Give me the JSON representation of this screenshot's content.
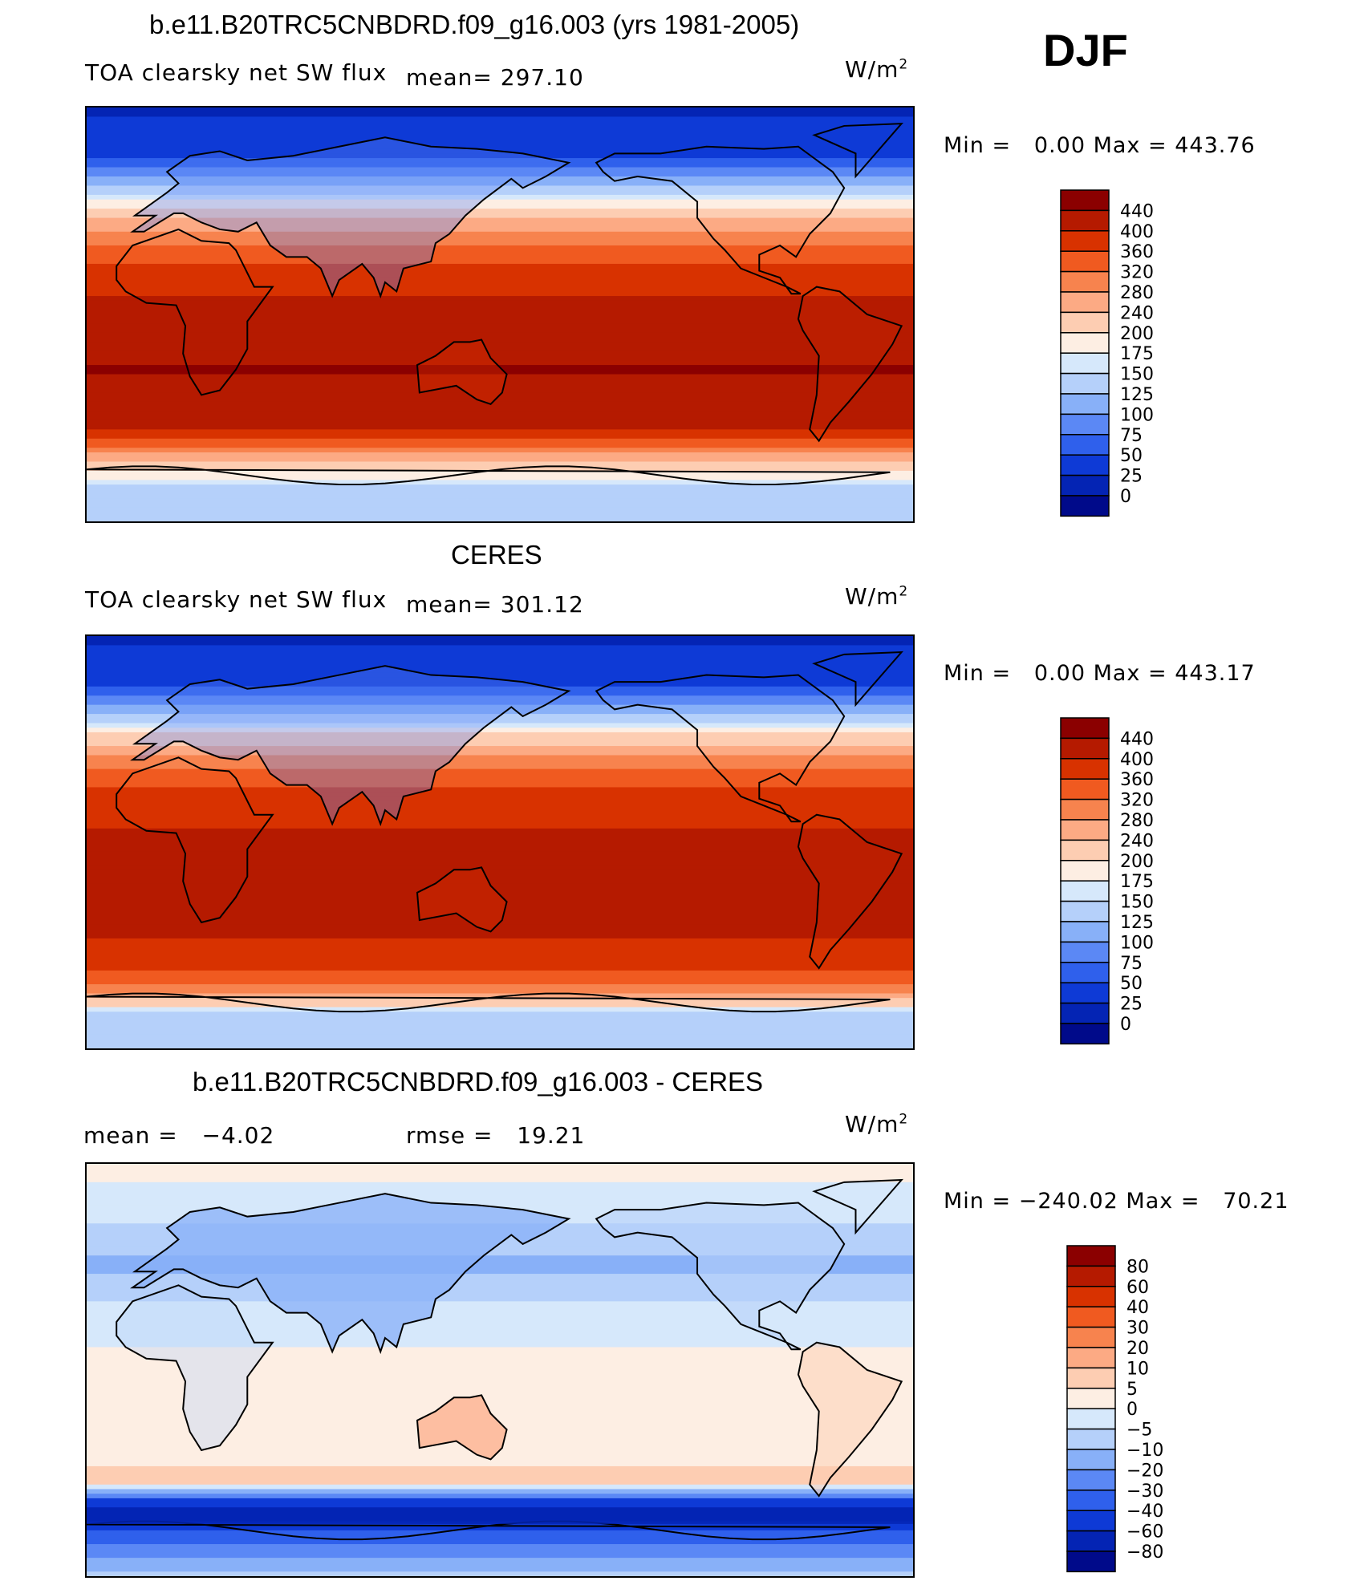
{
  "season": "DJF",
  "panels": [
    {
      "id": "model",
      "title": "b.e11.B20TRC5CNBDRD.f09_g16.003 (yrs 1981-2005)",
      "variable": "TOA clearsky net SW flux",
      "mean_label": "mean=",
      "mean_value": "297.10",
      "units_base": "W/m",
      "units_exp": "2",
      "min_label": "Min =",
      "min_value": "0.00",
      "max_label": "Max =",
      "max_value": "443.76"
    },
    {
      "id": "obs",
      "title": "CERES",
      "variable": "TOA clearsky net SW flux",
      "mean_label": "mean=",
      "mean_value": "301.12",
      "units_base": "W/m",
      "units_exp": "2",
      "min_label": "Min =",
      "min_value": "0.00",
      "max_label": "Max =",
      "max_value": "443.17"
    },
    {
      "id": "diff",
      "title": "b.e11.B20TRC5CNBDRD.f09_g16.003 - CERES",
      "mean_label": "mean =",
      "mean_value": "−4.02",
      "rmse_label": "rmse =",
      "rmse_value": "19.21",
      "units_base": "W/m",
      "units_exp": "2",
      "min_label": "Min =",
      "min_value": "−240.02",
      "max_label": "Max =",
      "max_value": "70.21"
    }
  ],
  "chart_data": [
    {
      "type": "heatmap",
      "title": "b.e11.B20TRC5CNBDRD.f09_g16.003 (yrs 1981-2005)",
      "variable": "TOA clearsky net SW flux",
      "units": "W/m2",
      "mean": 297.1,
      "min": 0.0,
      "max": 443.76,
      "colorbar_levels": [
        "440",
        "400",
        "360",
        "320",
        "280",
        "240",
        "200",
        "175",
        "150",
        "125",
        "100",
        "75",
        "50",
        "25",
        "0"
      ],
      "colors": [
        "#8b0000",
        "#b51a00",
        "#d83200",
        "#f05a20",
        "#f7834e",
        "#fcaa84",
        "#fdcdb2",
        "#fdeee3",
        "#d6e8fb",
        "#b5d0fa",
        "#88b0f8",
        "#5b88f5",
        "#2f60ec",
        "#0e3ad6",
        "#0424b4",
        "#000a8a"
      ],
      "zonal_profile": [
        {
          "lat": 90,
          "value": 20
        },
        {
          "lat": 70,
          "value": 40
        },
        {
          "lat": 55,
          "value": 130
        },
        {
          "lat": 45,
          "value": 210
        },
        {
          "lat": 35,
          "value": 290
        },
        {
          "lat": 20,
          "value": 370
        },
        {
          "lat": 0,
          "value": 420
        },
        {
          "lat": -25,
          "value": 443
        },
        {
          "lat": -50,
          "value": 400
        },
        {
          "lat": -65,
          "value": 230
        },
        {
          "lat": -75,
          "value": 140
        },
        {
          "lat": -90,
          "value": 130
        }
      ]
    },
    {
      "type": "heatmap",
      "title": "CERES",
      "variable": "TOA clearsky net SW flux",
      "units": "W/m2",
      "mean": 301.12,
      "min": 0.0,
      "max": 443.17,
      "colorbar_levels": [
        "440",
        "400",
        "360",
        "320",
        "280",
        "240",
        "200",
        "175",
        "150",
        "125",
        "100",
        "75",
        "50",
        "25",
        "0"
      ],
      "colors": [
        "#8b0000",
        "#b51a00",
        "#d83200",
        "#f05a20",
        "#f7834e",
        "#fcaa84",
        "#fdcdb2",
        "#fdeee3",
        "#d6e8fb",
        "#b5d0fa",
        "#88b0f8",
        "#5b88f5",
        "#2f60ec",
        "#0e3ad6",
        "#0424b4",
        "#000a8a"
      ],
      "zonal_profile": [
        {
          "lat": 90,
          "value": 20
        },
        {
          "lat": 70,
          "value": 40
        },
        {
          "lat": 55,
          "value": 130
        },
        {
          "lat": 45,
          "value": 220
        },
        {
          "lat": 35,
          "value": 300
        },
        {
          "lat": 20,
          "value": 380
        },
        {
          "lat": 0,
          "value": 410
        },
        {
          "lat": -25,
          "value": 420
        },
        {
          "lat": -50,
          "value": 390
        },
        {
          "lat": -65,
          "value": 300
        },
        {
          "lat": -75,
          "value": 140
        },
        {
          "lat": -90,
          "value": 130
        }
      ]
    },
    {
      "type": "heatmap",
      "title": "b.e11.B20TRC5CNBDRD.f09_g16.003 - CERES",
      "units": "W/m2",
      "mean": -4.02,
      "rmse": 19.21,
      "min": -240.02,
      "max": 70.21,
      "colorbar_levels": [
        "80",
        "60",
        "40",
        "30",
        "20",
        "10",
        "5",
        "0",
        "−5",
        "−10",
        "−20",
        "−30",
        "−40",
        "−60",
        "−80"
      ],
      "colors": [
        "#8b0000",
        "#b51a00",
        "#d83200",
        "#f05a20",
        "#f7834e",
        "#fcaa84",
        "#fdcdb2",
        "#fdeee3",
        "#d6e8fb",
        "#b5d0fa",
        "#88b0f8",
        "#5b88f5",
        "#2f60ec",
        "#0e3ad6",
        "#0424b4",
        "#000a8a"
      ],
      "zonal_profile": [
        {
          "lat": 90,
          "value": 2
        },
        {
          "lat": 70,
          "value": -3
        },
        {
          "lat": 55,
          "value": -8
        },
        {
          "lat": 45,
          "value": -12
        },
        {
          "lat": 35,
          "value": -6
        },
        {
          "lat": 20,
          "value": -3
        },
        {
          "lat": 0,
          "value": 3
        },
        {
          "lat": -25,
          "value": 3
        },
        {
          "lat": -50,
          "value": 6
        },
        {
          "lat": -62,
          "value": -80
        },
        {
          "lat": -70,
          "value": -40
        },
        {
          "lat": -90,
          "value": -5
        }
      ]
    }
  ]
}
